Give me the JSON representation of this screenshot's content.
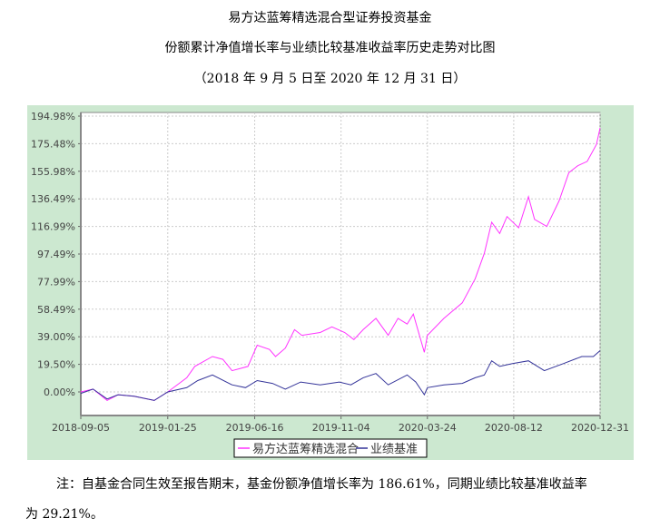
{
  "titles": {
    "line1": "易方达蓝筹精选混合型证券投资基金",
    "line2": "份额累计净值增长率与业绩比较基准收益率历史走势对比图",
    "line3": "（2018 年 9 月 5 日至 2020 年 12 月 31 日）"
  },
  "chart_data": {
    "type": "line",
    "title": "",
    "xlabel": "",
    "ylabel": "",
    "ylim": [
      -10,
      196
    ],
    "yticks": [
      "0.00%",
      "19.50%",
      "39.00%",
      "58.49%",
      "77.99%",
      "97.49%",
      "116.99%",
      "136.49%",
      "155.98%",
      "175.48%",
      "194.98%"
    ],
    "ytick_values": [
      0,
      19.5,
      39,
      58.49,
      77.99,
      97.49,
      116.99,
      136.49,
      155.98,
      175.48,
      194.98
    ],
    "xticks": [
      "2018-09-05",
      "2019-01-25",
      "2019-06-16",
      "2019-11-04",
      "2020-03-24",
      "2020-08-12",
      "2020-12-31"
    ],
    "grid": true,
    "legend_position": "bottom",
    "background_color": "#cce8d0",
    "series": [
      {
        "name": "易方达蓝筹精选混合",
        "color": "#ff33ff",
        "points": [
          [
            "2018-09-05",
            0
          ],
          [
            "2018-09-25",
            2
          ],
          [
            "2018-10-18",
            -6
          ],
          [
            "2018-11-05",
            -2
          ],
          [
            "2018-12-01",
            -3
          ],
          [
            "2019-01-03",
            -6
          ],
          [
            "2019-01-25",
            0
          ],
          [
            "2019-02-25",
            10
          ],
          [
            "2019-03-10",
            18
          ],
          [
            "2019-04-08",
            25
          ],
          [
            "2019-04-25",
            23
          ],
          [
            "2019-05-10",
            15
          ],
          [
            "2019-06-05",
            18
          ],
          [
            "2019-06-20",
            33
          ],
          [
            "2019-07-10",
            30
          ],
          [
            "2019-07-20",
            25
          ],
          [
            "2019-08-05",
            31
          ],
          [
            "2019-08-20",
            44
          ],
          [
            "2019-09-01",
            40
          ],
          [
            "2019-10-01",
            42
          ],
          [
            "2019-10-20",
            46
          ],
          [
            "2019-11-10",
            42
          ],
          [
            "2019-11-25",
            37
          ],
          [
            "2019-12-10",
            44
          ],
          [
            "2019-12-31",
            52
          ],
          [
            "2020-01-20",
            40
          ],
          [
            "2020-02-05",
            52
          ],
          [
            "2020-02-20",
            48
          ],
          [
            "2020-03-01",
            55
          ],
          [
            "2020-03-19",
            28
          ],
          [
            "2020-03-24",
            40
          ],
          [
            "2020-04-20",
            52
          ],
          [
            "2020-05-20",
            63
          ],
          [
            "2020-06-10",
            80
          ],
          [
            "2020-06-25",
            98
          ],
          [
            "2020-07-07",
            120
          ],
          [
            "2020-07-20",
            112
          ],
          [
            "2020-08-01",
            124
          ],
          [
            "2020-08-20",
            116
          ],
          [
            "2020-09-05",
            138
          ],
          [
            "2020-09-15",
            122
          ],
          [
            "2020-10-05",
            117
          ],
          [
            "2020-10-25",
            135
          ],
          [
            "2020-11-10",
            155
          ],
          [
            "2020-11-25",
            160
          ],
          [
            "2020-12-10",
            163
          ],
          [
            "2020-12-25",
            175
          ],
          [
            "2020-12-31",
            186.61
          ]
        ]
      },
      {
        "name": "业绩基准",
        "color": "#333399",
        "points": [
          [
            "2018-09-05",
            -1
          ],
          [
            "2018-09-25",
            2
          ],
          [
            "2018-10-18",
            -5
          ],
          [
            "2018-11-05",
            -2
          ],
          [
            "2018-12-01",
            -3
          ],
          [
            "2019-01-03",
            -6
          ],
          [
            "2019-01-25",
            0
          ],
          [
            "2019-02-25",
            3
          ],
          [
            "2019-03-15",
            8
          ],
          [
            "2019-04-08",
            12
          ],
          [
            "2019-05-10",
            5
          ],
          [
            "2019-06-01",
            3
          ],
          [
            "2019-06-20",
            8
          ],
          [
            "2019-07-15",
            6
          ],
          [
            "2019-08-05",
            2
          ],
          [
            "2019-08-30",
            7
          ],
          [
            "2019-10-01",
            5
          ],
          [
            "2019-11-01",
            7
          ],
          [
            "2019-11-20",
            5
          ],
          [
            "2019-12-10",
            10
          ],
          [
            "2019-12-31",
            13
          ],
          [
            "2020-01-20",
            5
          ],
          [
            "2020-02-20",
            12
          ],
          [
            "2020-03-05",
            7
          ],
          [
            "2020-03-19",
            -2
          ],
          [
            "2020-03-24",
            3
          ],
          [
            "2020-04-20",
            5
          ],
          [
            "2020-05-20",
            6
          ],
          [
            "2020-06-10",
            10
          ],
          [
            "2020-06-25",
            12
          ],
          [
            "2020-07-07",
            22
          ],
          [
            "2020-07-20",
            18
          ],
          [
            "2020-08-10",
            20
          ],
          [
            "2020-09-05",
            22
          ],
          [
            "2020-10-01",
            15
          ],
          [
            "2020-11-01",
            20
          ],
          [
            "2020-12-01",
            25
          ],
          [
            "2020-12-20",
            25
          ],
          [
            "2020-12-31",
            29.21
          ]
        ]
      }
    ]
  },
  "note": {
    "line1": "注：自基金合同生效至报告期末，基金份额净值增长率为 186.61%，同期业绩比较基准收益率",
    "line2": "为 29.21%。"
  }
}
